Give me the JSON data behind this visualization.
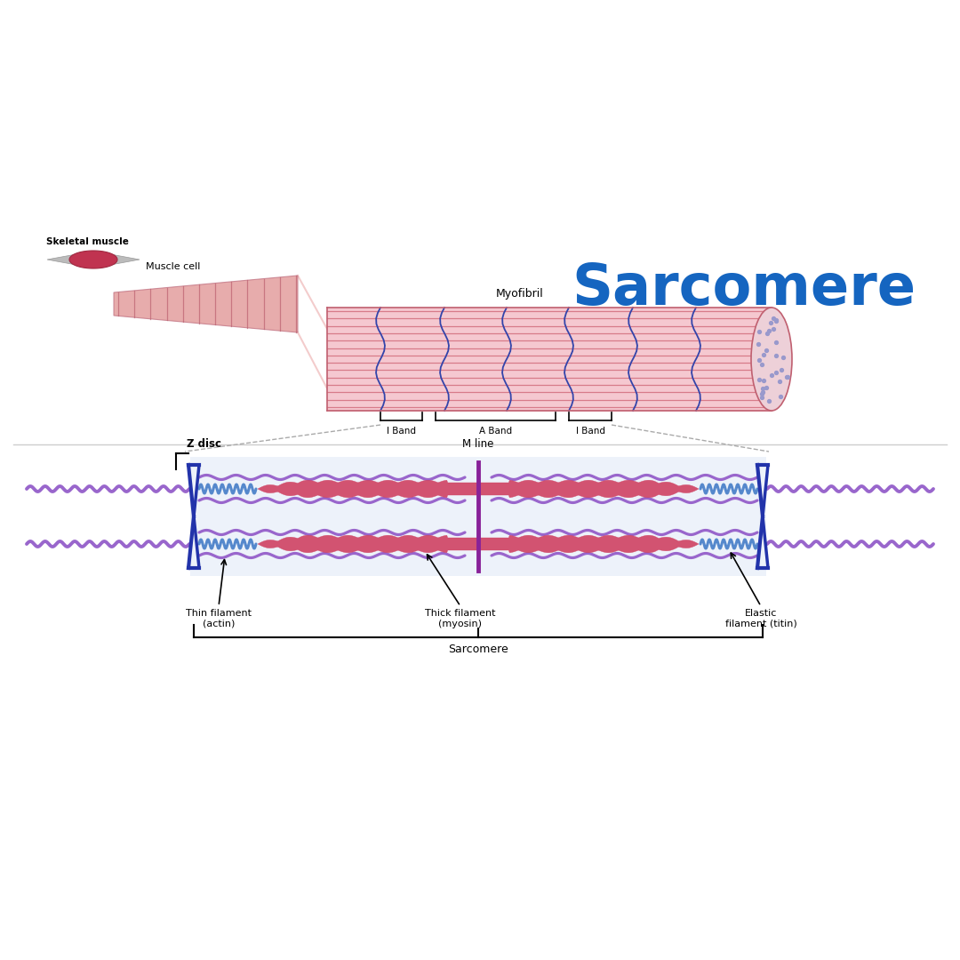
{
  "title": "Sarcomere",
  "title_color": "#1565C0",
  "title_fontsize": 46,
  "bg_color": "#ffffff",
  "labels": {
    "skeletal_muscle": "Skeletal muscle",
    "muscle_cell": "Muscle cell",
    "myofibril": "Myofibril",
    "i_band_left": "I Band",
    "a_band": "A Band",
    "i_band_right": "I Band",
    "z_disc": "Z disc",
    "m_line": "M line",
    "thin_filament": "Thin filament\n(actin)",
    "thick_filament": "Thick filament\n(myosin)",
    "elastic_filament": "Elastic\nfilament (titin)",
    "sarcomere": "Sarcomere"
  },
  "colors": {
    "thin_filament": "#9966CC",
    "thick_filament": "#D04565",
    "z_disc": "#2233AA",
    "m_line": "#882299",
    "spring_blue": "#5588CC",
    "sarcomere_bg": "#E0E8FF",
    "muscle_red": "#CC3355",
    "muscle_light": "#F0C0C8",
    "muscle_dark": "#BB3355",
    "cylinder_fill": "#F2C0C8",
    "cylinder_line": "#CC6677",
    "zline_color": "#3344AA"
  }
}
